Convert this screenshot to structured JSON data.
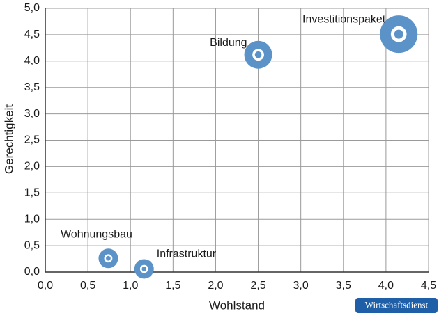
{
  "chart_data": {
    "type": "bubble",
    "x_label": "Wohlstand",
    "y_label": "Gerechtigkeit",
    "labels": [
      "Wohnungsbau",
      "Infrastruktur",
      "Bildung",
      "Investitionspaket"
    ],
    "x": [
      0.74,
      1.16,
      2.5,
      4.15
    ],
    "values": [
      0.26,
      0.06,
      4.12,
      4.51
    ],
    "sizes": [
      14,
      14,
      20,
      27
    ],
    "color": "#5b93c9",
    "xlim": [
      0,
      4.5
    ],
    "xticks": [
      {
        "value": 0,
        "label": "0,0"
      },
      {
        "value": 0.5,
        "label": "0,5"
      },
      {
        "value": 1,
        "label": "1,0"
      },
      {
        "value": 1.5,
        "label": "1,5"
      },
      {
        "value": 2,
        "label": "2,0"
      },
      {
        "value": 2.5,
        "label": "2,5"
      },
      {
        "value": 3,
        "label": "3,0"
      },
      {
        "value": 3.5,
        "label": "3,5"
      },
      {
        "value": 4,
        "label": "4,0"
      },
      {
        "value": 4.5,
        "label": "4,5"
      }
    ],
    "ylim": [
      0,
      5
    ],
    "yticks": [
      {
        "value": 0,
        "label": "0,0"
      },
      {
        "value": 0.5,
        "label": "0,5"
      },
      {
        "value": 1,
        "label": "1,0"
      },
      {
        "value": 1.5,
        "label": "1,5"
      },
      {
        "value": 2,
        "label": "2,0"
      },
      {
        "value": 2.5,
        "label": "2,5"
      },
      {
        "value": 3,
        "label": "3,0"
      },
      {
        "value": 3.5,
        "label": "3,5"
      },
      {
        "value": 4,
        "label": "4,0"
      },
      {
        "value": 4.5,
        "label": "4,5"
      },
      {
        "value": 5,
        "label": "5,0"
      }
    ],
    "grid": true
  },
  "badge": "Wirtschaftsdienst"
}
